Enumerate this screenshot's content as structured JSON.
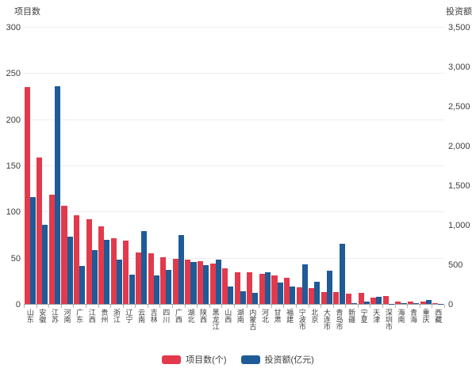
{
  "chart": {
    "left_axis_title": "项目数",
    "right_axis_title": "投资额"
  },
  "colors": {
    "series_red": "#e23a4c",
    "series_blue": "#1e5b97",
    "gridline": "#eeeeee",
    "axis_line": "#a0a0a0",
    "text": "#3d3d3d"
  },
  "legend": {
    "items": [
      {
        "label": "项目数(个)",
        "color": "#e23a4c"
      },
      {
        "label": "投资额(亿元)",
        "color": "#1e5b97"
      }
    ]
  },
  "chart_data": {
    "type": "bar",
    "title": "",
    "categories": [
      "山东",
      "安徽",
      "江苏",
      "河南",
      "广东",
      "江西",
      "贵州",
      "浙江",
      "辽宁",
      "云南",
      "吉林",
      "四川",
      "广西",
      "湖北",
      "陕西",
      "黑龙江",
      "山西",
      "湖南",
      "内蒙古",
      "河北",
      "甘肃",
      "福建",
      "宁波市",
      "北京",
      "大连市",
      "青岛市",
      "新疆",
      "宁夏",
      "天津",
      "深圳市",
      "海南",
      "青海",
      "重庆",
      "西藏"
    ],
    "series": [
      {
        "name": "项目数(个)",
        "yaxis": "left",
        "color": "#e23a4c",
        "values": [
          235,
          159,
          118,
          106,
          96,
          92,
          84,
          71,
          69,
          56,
          55,
          51,
          49,
          48,
          46,
          44,
          39,
          34,
          34,
          33,
          31,
          28,
          18,
          17,
          13,
          13,
          11,
          12,
          7,
          9,
          3,
          3,
          3,
          1
        ]
      },
      {
        "name": "投资额(亿元)",
        "yaxis": "right",
        "color": "#1e5b97",
        "values": [
          1350,
          1000,
          2750,
          850,
          480,
          680,
          810,
          560,
          370,
          920,
          360,
          430,
          870,
          530,
          490,
          560,
          220,
          160,
          140,
          400,
          270,
          220,
          500,
          280,
          420,
          760,
          10,
          30,
          95,
          5,
          12,
          8,
          48,
          3
        ]
      }
    ],
    "left_axis": {
      "label": "项目数",
      "min": 0,
      "max": 300,
      "tick_step": 50,
      "ticks": [
        "0",
        "50",
        "100",
        "150",
        "200",
        "250",
        "300"
      ]
    },
    "right_axis": {
      "label": "投资额",
      "min": 0,
      "max": 3500,
      "tick_step": 500,
      "ticks": [
        "0",
        "500",
        "1,000",
        "1,500",
        "2,000",
        "2,500",
        "3,000",
        "3,500"
      ]
    },
    "legend_position": "bottom",
    "grid": true
  }
}
